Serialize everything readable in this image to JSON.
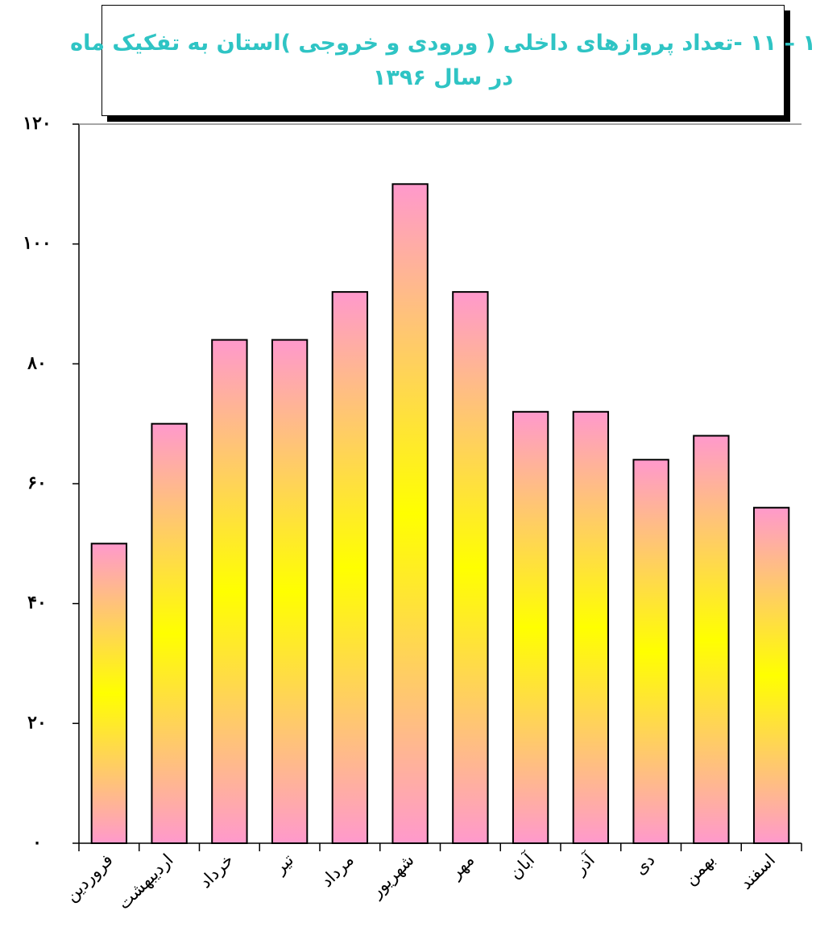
{
  "chart_data": {
    "type": "bar",
    "title_lines": [
      "۱ – ۱۱ -تعداد پروازهای داخلی ( ورودی و خروجی )استان به تفکیک ماه",
      "در سال ۱۳۹۶"
    ],
    "categories": [
      "فروردین",
      "اردیبهشت",
      "خرداد",
      "تیر",
      "مرداد",
      "شهریور",
      "مهر",
      "آبان",
      "آذر",
      "دی",
      "بهمن",
      "اسفند"
    ],
    "values": [
      50,
      70,
      84,
      84,
      92,
      110,
      92,
      72,
      72,
      64,
      68,
      56
    ],
    "ylim": [
      0,
      120
    ],
    "yticks": [
      0,
      20,
      40,
      60,
      80,
      100,
      120
    ],
    "ytick_labels": [
      "۰",
      "۲۰",
      "۴۰",
      "۶۰",
      "۸۰",
      "۱۰۰",
      "۱۲۰"
    ],
    "xlabel": "",
    "ylabel": "",
    "grid": false,
    "bar_gradient": {
      "edge": "#ff99cc",
      "center": "#ffff00"
    }
  }
}
